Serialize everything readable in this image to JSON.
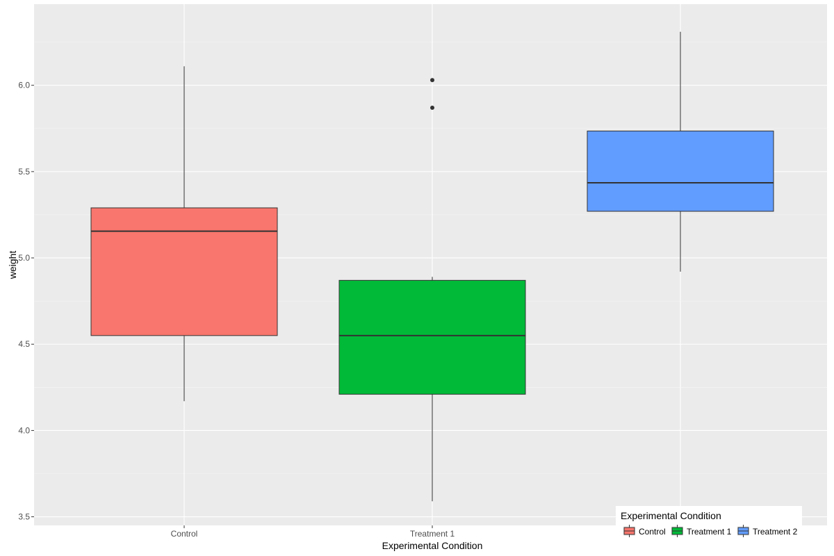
{
  "chart_data": {
    "type": "boxplot",
    "title": "",
    "xlabel": "Experimental Condition",
    "ylabel": "weight",
    "ylim": [
      3.45,
      6.47
    ],
    "y_ticks": [
      3.5,
      4.0,
      4.5,
      5.0,
      5.5,
      6.0
    ],
    "y_tick_labels": [
      "3.5",
      "4.0",
      "4.5",
      "5.0",
      "5.5",
      "6.0"
    ],
    "grid": true,
    "legend": {
      "title": "Experimental Condition",
      "placement": "bottom-right",
      "entries": [
        "Control",
        "Treatment 1",
        "Treatment 2"
      ]
    },
    "categories": [
      "Control",
      "Treatment 1",
      "Treatment 2"
    ],
    "colors": [
      "#F8766D",
      "#00BA38",
      "#619CFF"
    ],
    "boxes": [
      {
        "name": "Control",
        "whisker_low": 4.17,
        "q1": 4.55,
        "median": 5.155,
        "q3": 5.29,
        "whisker_high": 6.11,
        "outliers": []
      },
      {
        "name": "Treatment 1",
        "whisker_low": 3.59,
        "q1": 4.21,
        "median": 4.55,
        "q3": 4.87,
        "whisker_high": 4.89,
        "outliers": [
          5.87,
          6.03
        ]
      },
      {
        "name": "Treatment 2",
        "whisker_low": 4.92,
        "q1": 5.27,
        "median": 5.435,
        "q3": 5.735,
        "whisker_high": 6.31,
        "outliers": []
      }
    ]
  }
}
